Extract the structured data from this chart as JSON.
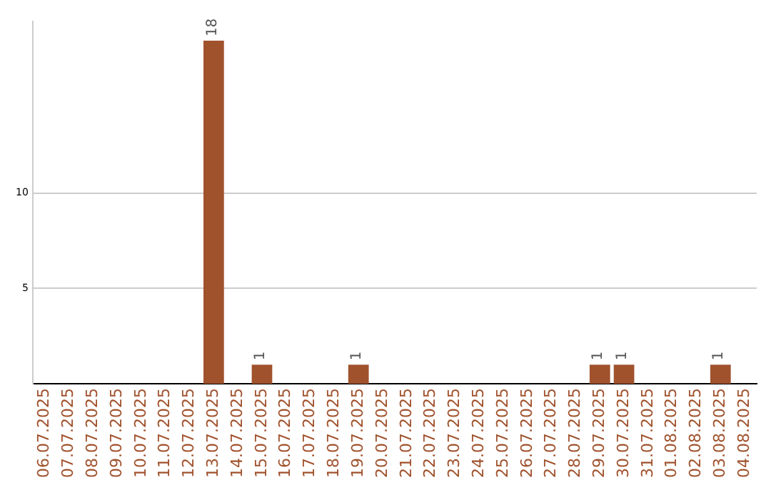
{
  "chart_data": {
    "type": "bar",
    "categories": [
      "06.07.2025",
      "07.07.2025",
      "08.07.2025",
      "09.07.2025",
      "10.07.2025",
      "11.07.2025",
      "12.07.2025",
      "13.07.2025",
      "14.07.2025",
      "15.07.2025",
      "16.07.2025",
      "17.07.2025",
      "18.07.2025",
      "19.07.2025",
      "20.07.2025",
      "21.07.2025",
      "22.07.2025",
      "23.07.2025",
      "24.07.2025",
      "25.07.2025",
      "26.07.2025",
      "27.07.2025",
      "28.07.2025",
      "29.07.2025",
      "30.07.2025",
      "31.07.2025",
      "01.08.2025",
      "02.08.2025",
      "03.08.2025",
      "04.08.2025"
    ],
    "values": [
      0,
      0,
      0,
      0,
      0,
      0,
      0,
      18,
      0,
      1,
      0,
      0,
      0,
      1,
      0,
      0,
      0,
      0,
      0,
      0,
      0,
      0,
      0,
      1,
      1,
      0,
      0,
      0,
      1,
      0
    ],
    "value_labels": [
      null,
      null,
      null,
      null,
      null,
      null,
      null,
      "18",
      null,
      "1",
      null,
      null,
      null,
      "1",
      null,
      null,
      null,
      null,
      null,
      null,
      null,
      null,
      null,
      "1",
      "1",
      null,
      null,
      null,
      "1",
      null
    ],
    "color": "#a0522d",
    "ylim": [
      0,
      19
    ],
    "yticks": [
      5,
      10
    ],
    "grid": "y",
    "legend": false
  }
}
